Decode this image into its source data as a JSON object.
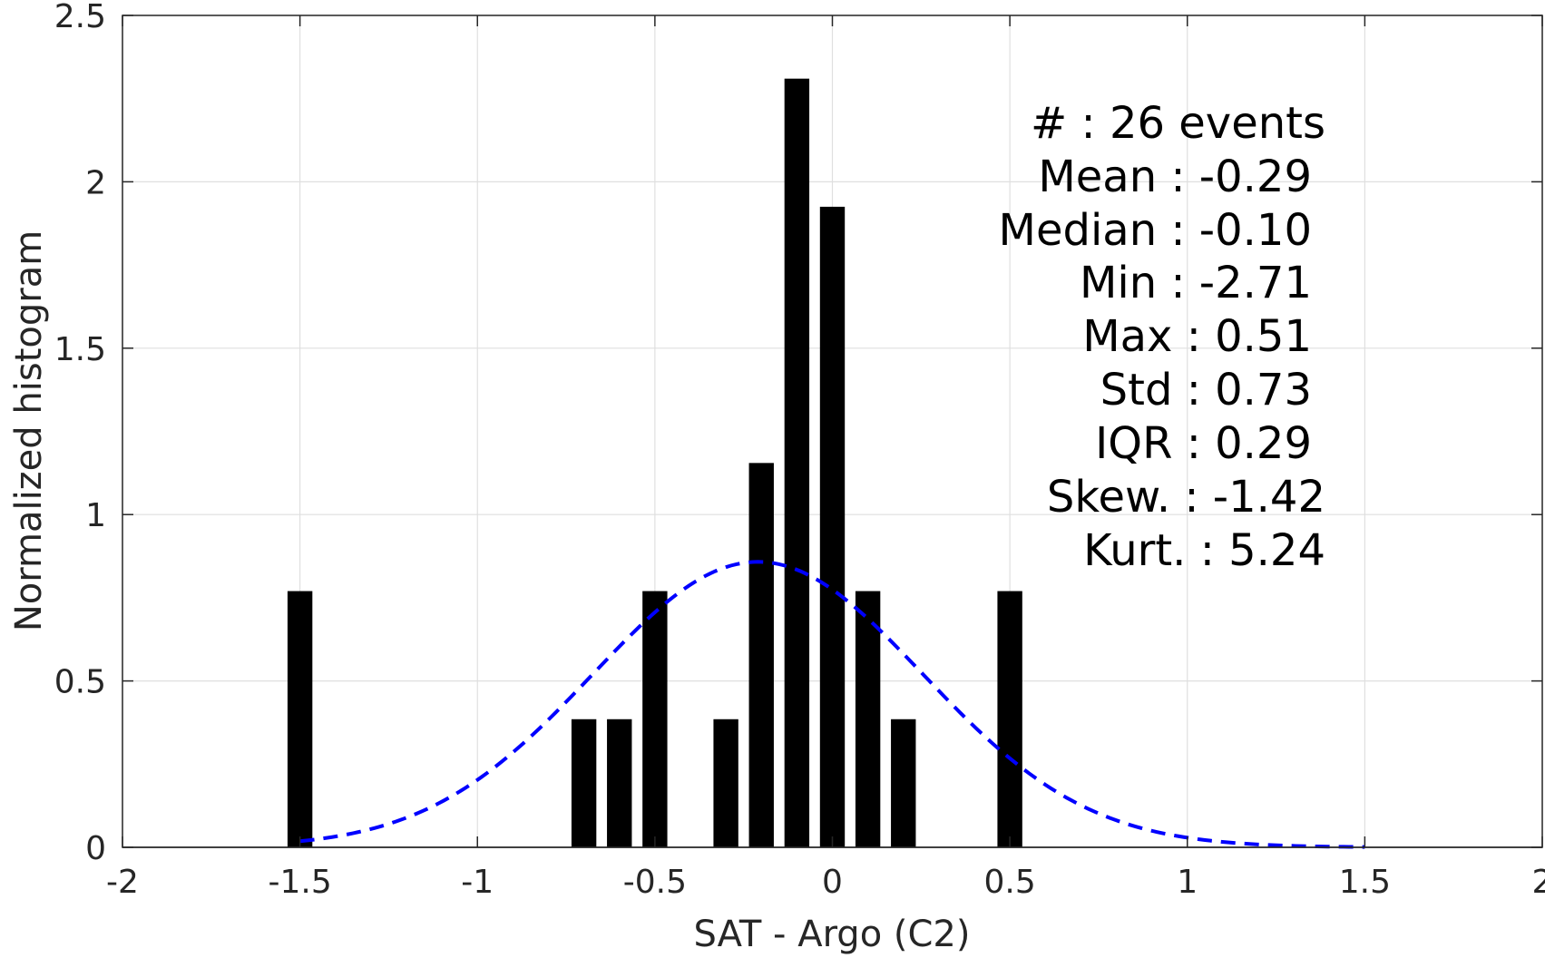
{
  "chart_data": {
    "type": "bar",
    "xlabel": "SAT - Argo (C2)",
    "ylabel": "Normalized histogram",
    "xlim": [
      -2,
      2
    ],
    "ylim": [
      0,
      2.5
    ],
    "xticks": [
      -2,
      -1.5,
      -1,
      -0.5,
      0,
      0.5,
      1,
      1.5,
      2
    ],
    "xtick_labels": [
      "-2",
      "-1.5",
      "-1",
      "-0.5",
      "0",
      "0.5",
      "1",
      "1.5",
      "2"
    ],
    "yticks": [
      0,
      0.5,
      1,
      1.5,
      2,
      2.5
    ],
    "ytick_labels": [
      "0",
      "0.5",
      "1",
      "1.5",
      "2",
      "2.5"
    ],
    "grid": true,
    "bar_width": 0.07,
    "bar_color": "#000000",
    "bars": [
      {
        "x": -1.5,
        "value": 0.77
      },
      {
        "x": -0.7,
        "value": 0.385
      },
      {
        "x": -0.6,
        "value": 0.385
      },
      {
        "x": -0.5,
        "value": 0.77
      },
      {
        "x": -0.3,
        "value": 0.385
      },
      {
        "x": -0.2,
        "value": 1.155
      },
      {
        "x": -0.1,
        "value": 2.31
      },
      {
        "x": 0.0,
        "value": 1.925
      },
      {
        "x": 0.1,
        "value": 0.77
      },
      {
        "x": 0.2,
        "value": 0.385
      },
      {
        "x": 0.5,
        "value": 0.77
      }
    ],
    "fit_curve": {
      "type": "normal",
      "mean": -0.21,
      "std": 0.465,
      "x_range": [
        -1.5,
        1.5
      ],
      "color": "#0000ff",
      "style": "dashed"
    },
    "annotations": [
      "#  : 26 events",
      "Mean : -0.29",
      "Median : -0.10",
      "Min : -2.71",
      "Max : 0.51",
      "Std : 0.73",
      "IQR : 0.29",
      "Skew. : -1.42",
      "Kurt. : 5.24"
    ]
  }
}
